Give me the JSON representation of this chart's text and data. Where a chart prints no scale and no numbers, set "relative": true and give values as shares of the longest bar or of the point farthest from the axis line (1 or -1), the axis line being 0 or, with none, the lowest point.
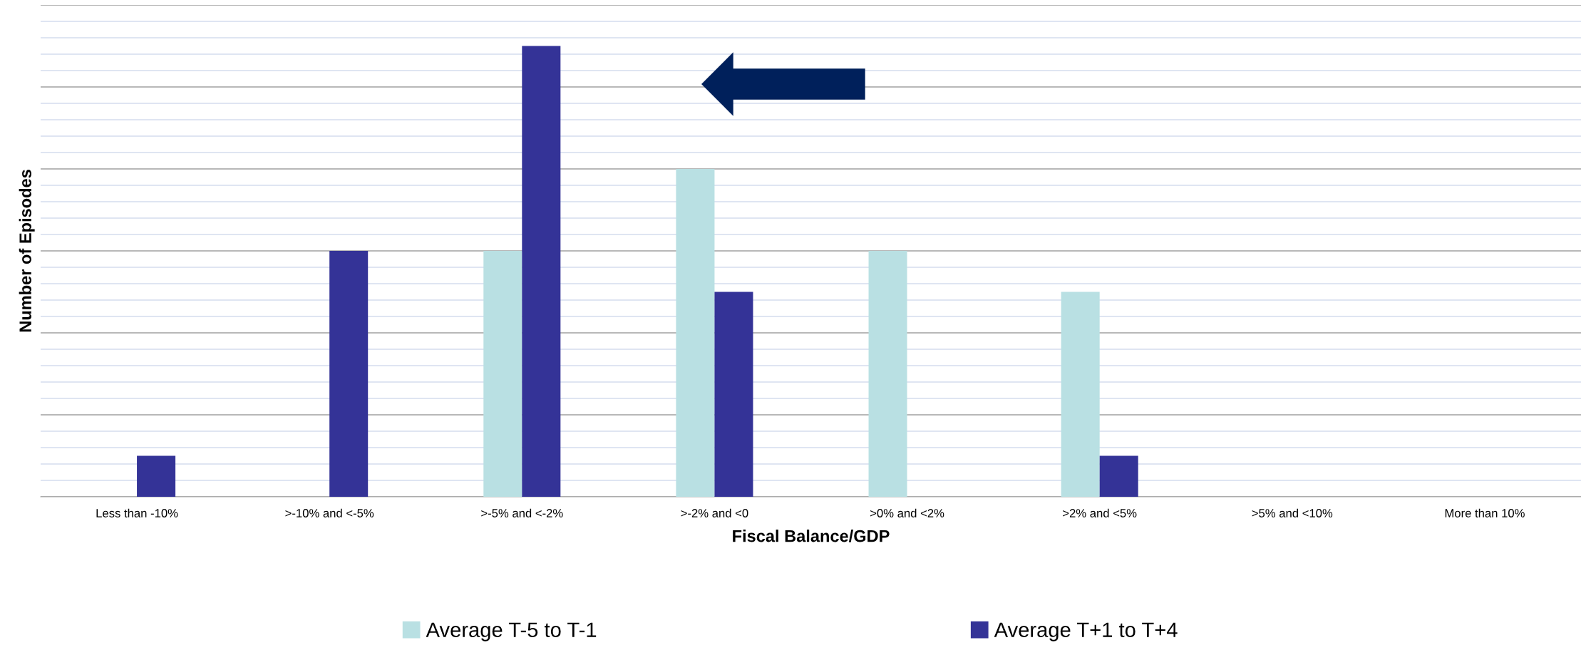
{
  "chart_data": {
    "type": "bar",
    "relative": true,
    "xlabel": "Fiscal Balance/GDP",
    "ylabel": "Number of Episodes",
    "categories": [
      "Less than -10%",
      ">-10% and <-5%",
      ">-5% and <-2%",
      ">-2% and <0",
      ">0% and <2%",
      ">2% and <5%",
      ">5% and <10%",
      "More than 10%"
    ],
    "series": [
      {
        "name": "Average T-5 to T-1",
        "color": "#b9e0e3",
        "values": [
          0,
          0,
          0.5455,
          0.7273,
          0.5455,
          0.4545,
          0,
          0
        ]
      },
      {
        "name": "Average T+1 to T+4",
        "color": "#343397",
        "values": [
          0.0909,
          0.5455,
          1,
          0.4545,
          0,
          0.0909,
          0,
          0
        ]
      }
    ],
    "grid": "y",
    "legend": "bottom"
  }
}
